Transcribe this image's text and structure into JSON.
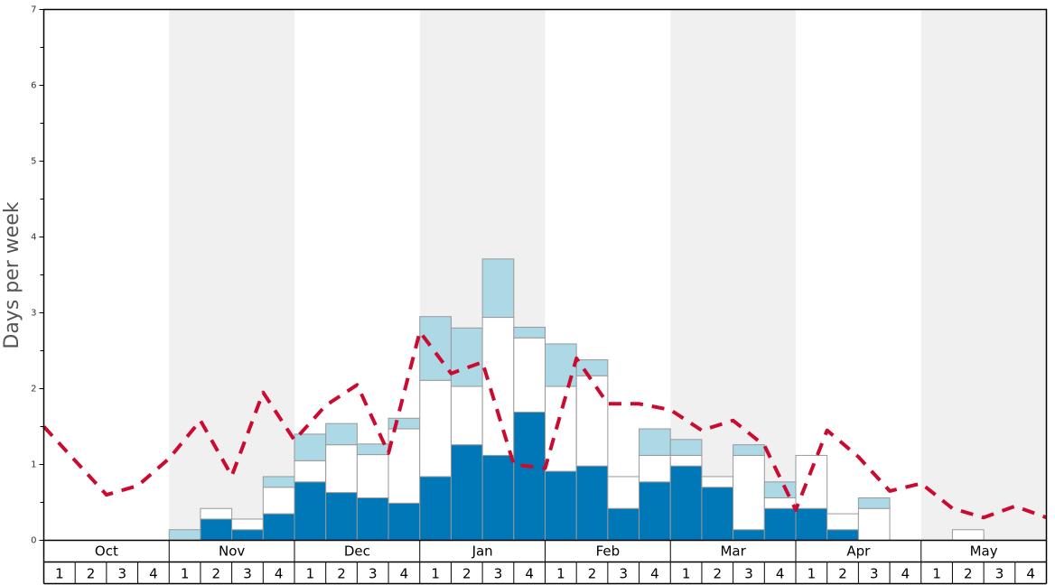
{
  "chart_data": {
    "type": "bar",
    "ylabel": "Days per week",
    "ylim": [
      0,
      7
    ],
    "y_ticks": [
      "0",
      "1",
      "2",
      "3",
      "4",
      "5",
      "6",
      "7"
    ],
    "months": [
      "Oct",
      "Nov",
      "Dec",
      "Jan",
      "Feb",
      "Mar",
      "Apr",
      "May"
    ],
    "weeks": [
      "1",
      "2",
      "3",
      "4"
    ],
    "shaded_months": [
      "Nov",
      "Jan",
      "Mar",
      "May"
    ],
    "colors": {
      "stack_1": "#0077b6",
      "stack_2": "#ffffff",
      "stack_3": "#add8e6",
      "line": "#cc0a2f",
      "shade": "#f0f0f0",
      "bar_edge": "#999999"
    },
    "stacked": true,
    "series": [
      {
        "values": [
          0,
          0,
          0,
          0,
          0,
          0.28,
          0.14,
          0.35,
          0.77,
          0.63,
          0.56,
          0.49,
          0.84,
          1.26,
          1.12,
          1.69,
          0.91,
          0.98,
          0.42,
          0.77,
          0.98,
          0.7,
          0.14,
          0.42,
          0.42,
          0.14,
          0,
          0,
          0,
          0,
          0,
          0
        ]
      },
      {
        "values": [
          0,
          0,
          0,
          0,
          0,
          0.14,
          0.14,
          0.35,
          0.28,
          0.63,
          0.57,
          0.98,
          1.27,
          0.77,
          1.82,
          0.98,
          1.12,
          1.19,
          0.42,
          0.35,
          0.14,
          0.14,
          0.98,
          0.14,
          0.7,
          0.21,
          0.42,
          0,
          0,
          0.14,
          0,
          0
        ]
      },
      {
        "values": [
          0,
          0,
          0,
          0,
          0.14,
          0,
          0,
          0.14,
          0.35,
          0.28,
          0.14,
          0.14,
          0.84,
          0.77,
          0.77,
          0.14,
          0.56,
          0.21,
          0,
          0.35,
          0.21,
          0,
          0.14,
          0.21,
          0,
          0,
          0.14,
          0,
          0,
          0,
          0,
          0
        ]
      },
      {
        "type": "line",
        "style": "dashed",
        "values": [
          1.5,
          1.05,
          0.6,
          0.72,
          1.08,
          1.58,
          0.85,
          1.95,
          1.32,
          1.78,
          2.05,
          1.15,
          2.75,
          2.2,
          2.35,
          1.0,
          0.95,
          2.4,
          1.8,
          1.8,
          1.72,
          1.45,
          1.58,
          1.25,
          0.4,
          1.45,
          1.1,
          0.65,
          0.75,
          0.42,
          0.3,
          0.45,
          0.3
        ]
      }
    ]
  }
}
